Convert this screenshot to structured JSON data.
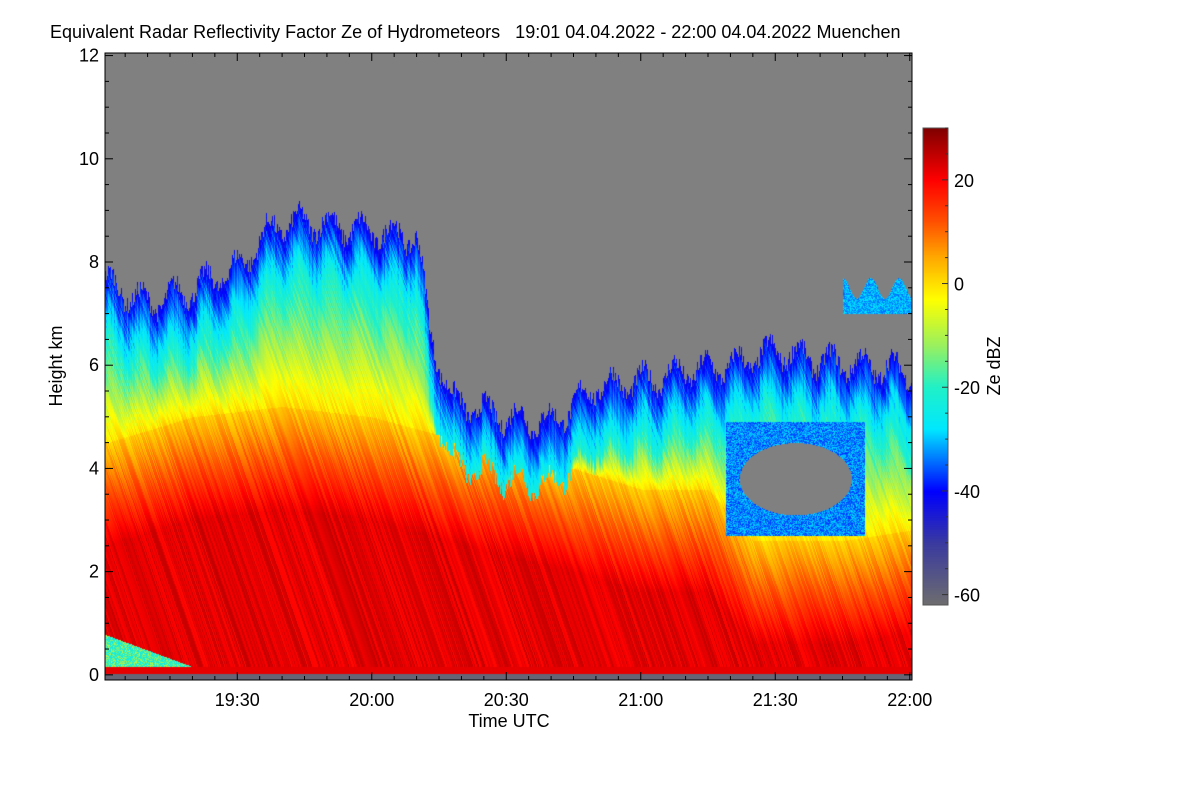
{
  "title": "Equivalent Radar Reflectivity Factor Ze of Hydrometeors   19:01 04.04.2022 - 22:00 04.04.2022 Muenchen",
  "chart_data": {
    "type": "heatmap",
    "title": "Equivalent Radar Reflectivity Factor Ze of Hydrometeors",
    "period": "19:01 04.04.2022 - 22:00 04.04.2022",
    "location": "Muenchen",
    "xlabel": "Time UTC",
    "ylabel": "Height km",
    "xlim_minutes_after_1900": [
      0.5,
      180.5
    ],
    "ylim": [
      -0.1,
      12.05
    ],
    "xticks": [
      {
        "min": 30,
        "label": "19:30"
      },
      {
        "min": 60,
        "label": "20:00"
      },
      {
        "min": 90,
        "label": "20:30"
      },
      {
        "min": 120,
        "label": "21:00"
      },
      {
        "min": 150,
        "label": "21:30"
      },
      {
        "min": 180,
        "label": "22:00"
      }
    ],
    "yticks": [
      {
        "v": 0,
        "label": "0"
      },
      {
        "v": 2,
        "label": "2"
      },
      {
        "v": 4,
        "label": "4"
      },
      {
        "v": 6,
        "label": "6"
      },
      {
        "v": 8,
        "label": "8"
      },
      {
        "v": 10,
        "label": "10"
      },
      {
        "v": 12,
        "label": "12"
      }
    ],
    "colorbar": {
      "label": "Ze dBZ",
      "range": [
        -62,
        30
      ],
      "ticks": [
        {
          "v": 20,
          "label": "20"
        },
        {
          "v": 0,
          "label": "0"
        },
        {
          "v": -20,
          "label": "-20"
        },
        {
          "v": -40,
          "label": "-40"
        },
        {
          "v": -60,
          "label": "-60"
        }
      ],
      "stops": [
        [
          -62,
          "#6e6e6e"
        ],
        [
          -50,
          "#3a3aa0"
        ],
        [
          -40,
          "#0000ff"
        ],
        [
          -35,
          "#0060ff"
        ],
        [
          -28,
          "#00e8ff"
        ],
        [
          -20,
          "#20f0c8"
        ],
        [
          -12,
          "#98f060"
        ],
        [
          -3,
          "#ffff00"
        ],
        [
          5,
          "#ffaa00"
        ],
        [
          12,
          "#ff5000"
        ],
        [
          20,
          "#ff0000"
        ],
        [
          30,
          "#800000"
        ]
      ]
    },
    "no_echo_color": "#808080",
    "echo_top_km": [
      [
        1,
        7.6
      ],
      [
        10,
        7.2
      ],
      [
        20,
        7.5
      ],
      [
        30,
        7.9
      ],
      [
        38,
        8.7
      ],
      [
        45,
        8.8
      ],
      [
        60,
        8.6
      ],
      [
        70,
        8.5
      ],
      [
        73,
        6.6
      ],
      [
        78,
        5.3
      ],
      [
        90,
        5.0
      ],
      [
        100,
        4.9
      ],
      [
        110,
        5.6
      ],
      [
        120,
        5.7
      ],
      [
        130,
        5.9
      ],
      [
        140,
        6.0
      ],
      [
        150,
        6.3
      ],
      [
        160,
        6.1
      ],
      [
        170,
        6.0
      ],
      [
        180,
        5.9
      ]
    ],
    "zero_dbz_height_km": [
      [
        1,
        4.5
      ],
      [
        20,
        5.0
      ],
      [
        40,
        5.2
      ],
      [
        60,
        5.0
      ],
      [
        90,
        4.3
      ],
      [
        105,
        4.0
      ],
      [
        120,
        3.6
      ],
      [
        135,
        3.6
      ],
      [
        145,
        2.6
      ],
      [
        165,
        2.6
      ],
      [
        180,
        2.8
      ]
    ],
    "clear_gap": {
      "minutes": [
        142,
        167
      ],
      "height_km": [
        3.1,
        4.5
      ]
    },
    "upper_cloud": {
      "minutes": [
        165,
        180
      ],
      "height_km": [
        7.0,
        7.5
      ]
    },
    "low_level_weak_echo": {
      "minutes": [
        0,
        20
      ],
      "height_km": [
        0,
        0.8
      ]
    }
  }
}
